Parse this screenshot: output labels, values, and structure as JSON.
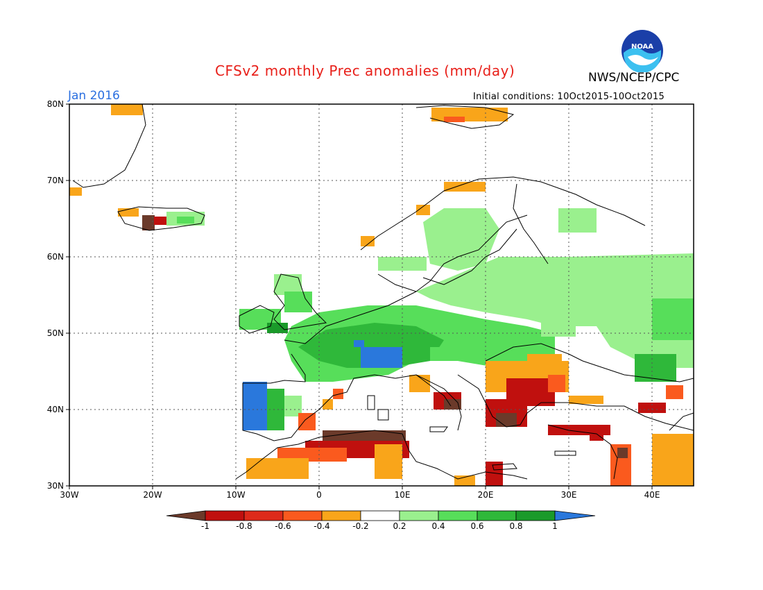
{
  "header": {
    "title": "CFSv2 monthly Prec anomalies (mm/day)",
    "agency": "NWS/NCEP/CPC",
    "valid_month": "Jan 2016",
    "initial_conditions": "Initial conditions: 10Oct2015-10Oct2015",
    "logo_text": "NOAA"
  },
  "map": {
    "lat_labels": [
      "80N",
      "70N",
      "60N",
      "50N",
      "40N",
      "30N"
    ],
    "lon_labels": [
      "30W",
      "20W",
      "10W",
      "0",
      "10E",
      "20E",
      "30E",
      "40E"
    ],
    "lon_range": [
      -30,
      45
    ],
    "lat_range": [
      30,
      80
    ],
    "grid": true
  },
  "colorbar": {
    "labels": [
      "-1",
      "-0.8",
      "-0.6",
      "-0.4",
      "-0.2",
      "0.2",
      "0.4",
      "0.6",
      "0.8",
      "1"
    ],
    "colors": {
      "lt_-1": "#6b3a2a",
      "-1_-0.8": "#c0100e",
      "-0.8_-0.6": "#dd2a1a",
      "-0.6_-0.4": "#fa5a1e",
      "-0.4_-0.2": "#f9a51a",
      "-0.2_0.2": "#ffffff",
      "0.2_0.4": "#9af08e",
      "0.4_0.6": "#57de5a",
      "0.6_0.8": "#2fb83a",
      "0.8_1": "#1a9a2a",
      "gt_1": "#2a78dc"
    }
  }
}
